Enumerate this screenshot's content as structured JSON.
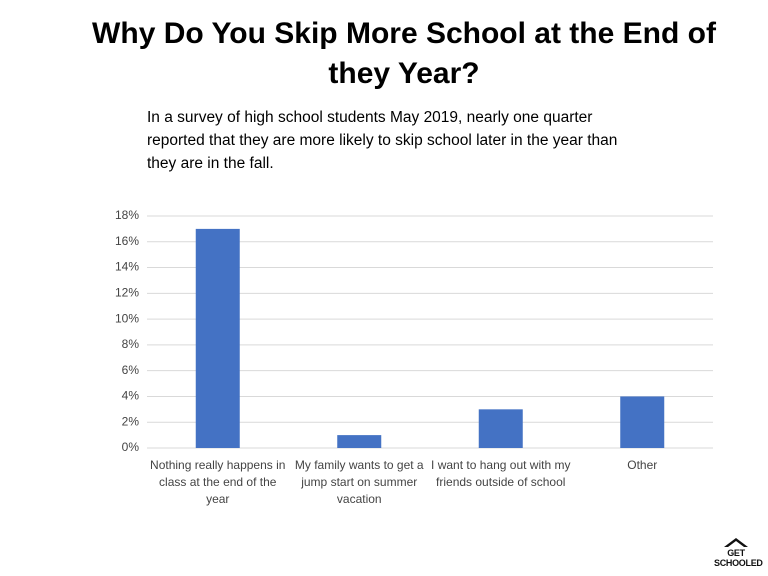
{
  "chart_data": {
    "type": "bar",
    "title": "Why Do You Skip More School at the End of they Year?",
    "subtitle": "In a survey of high school students May 2019, nearly one quarter reported that they are more likely to skip school later in the year than they are in the fall.",
    "categories": [
      "Nothing really happens in class at the end of the year",
      "My family wants to get a jump start on summer vacation",
      "I want to hang out with my friends outside of school",
      "Other"
    ],
    "values": [
      17,
      1,
      3,
      4
    ],
    "color": "#4472c4",
    "ylim": [
      0,
      18
    ],
    "yticks": [
      {
        "value": 0,
        "label": "0%"
      },
      {
        "value": 2,
        "label": "2%"
      },
      {
        "value": 4,
        "label": "4%"
      },
      {
        "value": 6,
        "label": "6%"
      },
      {
        "value": 8,
        "label": "8%"
      },
      {
        "value": 10,
        "label": "10%"
      },
      {
        "value": 12,
        "label": "12%"
      },
      {
        "value": 14,
        "label": "14%"
      },
      {
        "value": 16,
        "label": "16%"
      },
      {
        "value": 18,
        "label": "18%"
      }
    ],
    "grid": true
  },
  "logo": "GET SCHOOLED"
}
